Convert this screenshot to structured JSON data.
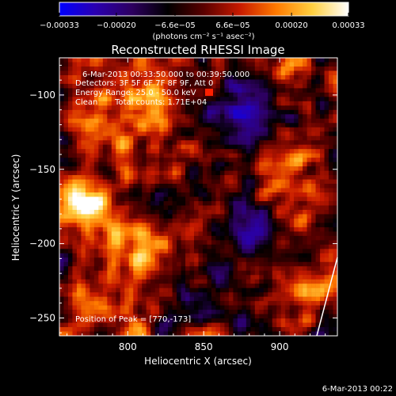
{
  "chart_data": {
    "type": "heatmap",
    "title": "Reconstructed RHESSI Image",
    "xlabel": "Heliocentric X (arcsec)",
    "ylabel": "Heliocentric Y (arcsec)",
    "xlim": [
      755,
      938
    ],
    "ylim": [
      -262,
      -75
    ],
    "x_ticks": [
      800,
      850,
      900
    ],
    "x_tick_labels": [
      "800",
      "850",
      "900"
    ],
    "y_ticks": [
      -100,
      -150,
      -200,
      -250
    ],
    "y_tick_labels": [
      "-100",
      "-150",
      "-200",
      "-250"
    ],
    "colorbar": {
      "min": -0.00033,
      "max": 0.00033,
      "ticks": [
        -0.00033,
        -0.0002,
        -6.6e-05,
        6.6e-05,
        0.0002,
        0.00033
      ],
      "tick_labels": [
        "-0.00033",
        "-0.00020",
        "-6.6e-05",
        "6.6e-05",
        "0.00020",
        "0.00033"
      ],
      "unit_label": "(photons cm⁻² s⁻¹ asec⁻²)",
      "colormap": [
        "#0000ff",
        "#2a00b0",
        "#2d0060",
        "#000000",
        "#5a0000",
        "#c81a00",
        "#ff7a00",
        "#ffd040",
        "#ffffff"
      ]
    },
    "annotations": {
      "time_range": "6-Mar-2013 00:33:50.000 to 00:39:50.000",
      "detectors": "Detectors: 3F 5F 6F 7F 8F 9F, Att 0",
      "energy_range": "Energy Range: 25.0 - 50.0 keV",
      "clean": "Clean",
      "total_counts": "Total counts: 1.71E+04",
      "peak": "Position of Peak = [770,-173]"
    },
    "peak_position": [
      770,
      -173
    ],
    "energy_swatch_color": "#ff2000",
    "grid": false,
    "legend": "none",
    "colorbar_placement": "top"
  },
  "footer": {
    "timestamp": "6-Mar-2013 00:22"
  }
}
